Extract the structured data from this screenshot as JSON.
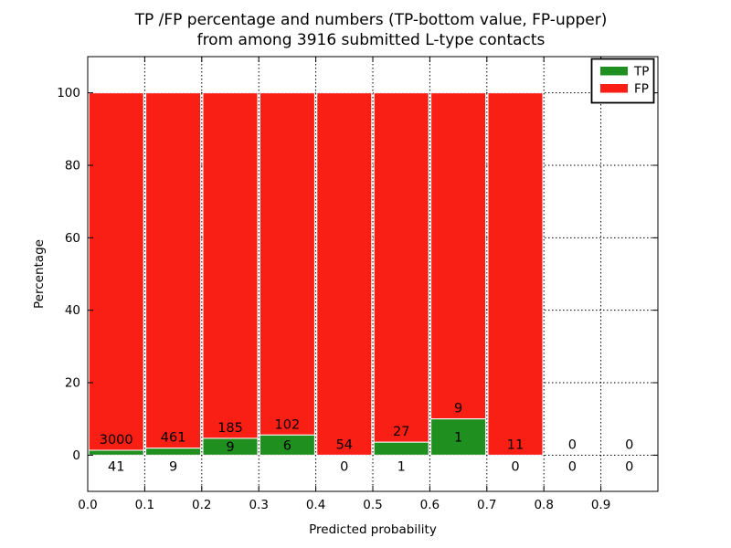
{
  "chart_data": {
    "type": "bar",
    "stacked": true,
    "title_line1": "TP /FP percentage and numbers (TP-bottom value, FP-upper)",
    "title_line2": "from among 3916 submitted L-type contacts",
    "total_submitted": 3916,
    "xlabel": "Predicted probability",
    "ylabel": "Percentage",
    "x_tick_labels": [
      "0.0",
      "0.1",
      "0.2",
      "0.3",
      "0.4",
      "0.5",
      "0.6",
      "0.7",
      "0.8",
      "0.9"
    ],
    "y_tick_values": [
      0,
      20,
      40,
      60,
      80,
      100
    ],
    "xlim": [
      0.0,
      1.0
    ],
    "ylim": [
      -10,
      110
    ],
    "grid": true,
    "colors": {
      "tp": "#1f8f1f",
      "fp": "#fa1f14"
    },
    "legend": {
      "position": "upper-right",
      "entries": [
        {
          "label": "TP",
          "series": "tp"
        },
        {
          "label": "FP",
          "series": "fp"
        }
      ]
    },
    "bins": [
      {
        "x_range": [
          0.0,
          0.1
        ],
        "tp_count": 41,
        "fp_count": 3000
      },
      {
        "x_range": [
          0.1,
          0.2
        ],
        "tp_count": 9,
        "fp_count": 461
      },
      {
        "x_range": [
          0.2,
          0.3
        ],
        "tp_count": 9,
        "fp_count": 185
      },
      {
        "x_range": [
          0.3,
          0.4
        ],
        "tp_count": 6,
        "fp_count": 102
      },
      {
        "x_range": [
          0.4,
          0.5
        ],
        "tp_count": 0,
        "fp_count": 54
      },
      {
        "x_range": [
          0.5,
          0.6
        ],
        "tp_count": 1,
        "fp_count": 27
      },
      {
        "x_range": [
          0.6,
          0.7
        ],
        "tp_count": 1,
        "fp_count": 9
      },
      {
        "x_range": [
          0.7,
          0.8
        ],
        "tp_count": 0,
        "fp_count": 11
      },
      {
        "x_range": [
          0.8,
          0.9
        ],
        "tp_count": 0,
        "fp_count": 0
      },
      {
        "x_range": [
          0.9,
          1.0
        ],
        "tp_count": 0,
        "fp_count": 0
      }
    ]
  }
}
